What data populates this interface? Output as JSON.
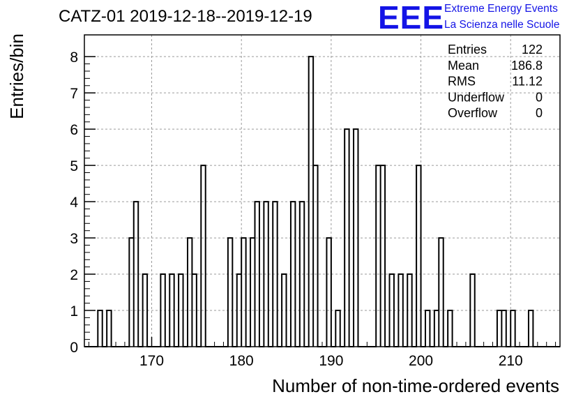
{
  "chart_data": {
    "type": "bar",
    "title": "CATZ-01 2019-12-18--2019-12-19",
    "xlabel": "Number of non-time-ordered events",
    "ylabel": "Entries/bin",
    "xlim": [
      162.5,
      215.5
    ],
    "ylim": [
      0,
      8.6
    ],
    "x_ticks": [
      "170",
      "180",
      "190",
      "200",
      "210"
    ],
    "y_ticks": [
      "0",
      "1",
      "2",
      "3",
      "4",
      "5",
      "6",
      "7",
      "8"
    ],
    "grid": true,
    "bin_width": 0.5,
    "bins": [
      {
        "x": 164.0,
        "value": 1
      },
      {
        "x": 165.0,
        "value": 1
      },
      {
        "x": 167.5,
        "value": 3
      },
      {
        "x": 168.0,
        "value": 4
      },
      {
        "x": 169.0,
        "value": 2
      },
      {
        "x": 171.0,
        "value": 2
      },
      {
        "x": 172.0,
        "value": 2
      },
      {
        "x": 173.0,
        "value": 2
      },
      {
        "x": 174.0,
        "value": 3
      },
      {
        "x": 174.5,
        "value": 2
      },
      {
        "x": 175.5,
        "value": 5
      },
      {
        "x": 178.5,
        "value": 3
      },
      {
        "x": 179.5,
        "value": 2
      },
      {
        "x": 180.0,
        "value": 3
      },
      {
        "x": 181.0,
        "value": 3
      },
      {
        "x": 181.5,
        "value": 4
      },
      {
        "x": 182.5,
        "value": 4
      },
      {
        "x": 183.5,
        "value": 4
      },
      {
        "x": 184.5,
        "value": 2
      },
      {
        "x": 185.5,
        "value": 4
      },
      {
        "x": 186.5,
        "value": 4
      },
      {
        "x": 187.5,
        "value": 8
      },
      {
        "x": 188.0,
        "value": 5
      },
      {
        "x": 189.5,
        "value": 3
      },
      {
        "x": 190.5,
        "value": 1
      },
      {
        "x": 191.5,
        "value": 6
      },
      {
        "x": 192.5,
        "value": 6
      },
      {
        "x": 195.0,
        "value": 5
      },
      {
        "x": 195.5,
        "value": 5
      },
      {
        "x": 196.5,
        "value": 2
      },
      {
        "x": 197.5,
        "value": 2
      },
      {
        "x": 198.5,
        "value": 2
      },
      {
        "x": 199.5,
        "value": 5
      },
      {
        "x": 200.5,
        "value": 1
      },
      {
        "x": 201.5,
        "value": 1
      },
      {
        "x": 202.0,
        "value": 3
      },
      {
        "x": 203.0,
        "value": 1
      },
      {
        "x": 205.5,
        "value": 2
      },
      {
        "x": 208.5,
        "value": 1
      },
      {
        "x": 209.0,
        "value": 1
      },
      {
        "x": 210.0,
        "value": 1
      },
      {
        "x": 212.0,
        "value": 1
      }
    ],
    "stats": [
      {
        "label": "Entries",
        "value": "122"
      },
      {
        "label": "Mean",
        "value": "186.8"
      },
      {
        "label": "RMS",
        "value": "11.12"
      },
      {
        "label": "Underflow",
        "value": "0"
      },
      {
        "label": "Overflow",
        "value": "0"
      }
    ]
  },
  "logo": {
    "mark": "EEE",
    "line1": "Extreme Energy Events",
    "line2": "La Scienza nelle Scuole",
    "color": "#1414e6"
  }
}
